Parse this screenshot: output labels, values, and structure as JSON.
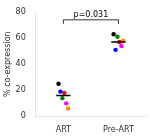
{
  "chart_data": {
    "type": "scatter",
    "categories": [
      "ART",
      "Pre-ART"
    ],
    "series": [
      {
        "color": "#000000",
        "values": [
          25,
          63
        ]
      },
      {
        "color": "#0000ff",
        "values": [
          19,
          51
        ]
      },
      {
        "color": "#008000",
        "values": [
          14,
          61
        ]
      },
      {
        "color": "#ff0000",
        "values": [
          18,
          57
        ]
      },
      {
        "color": "#ff00ff",
        "values": [
          10,
          54
        ]
      },
      {
        "color": "#ff8c00",
        "values": [
          6,
          58
        ]
      }
    ],
    "medians": [
      16,
      57
    ],
    "annotations": [
      {
        "text": "p=0.031",
        "y": 74
      }
    ],
    "ylabel": "% co-expression",
    "ylim": [
      0,
      80
    ],
    "yticks": [
      0,
      20,
      40,
      60,
      80
    ],
    "grid": false
  }
}
